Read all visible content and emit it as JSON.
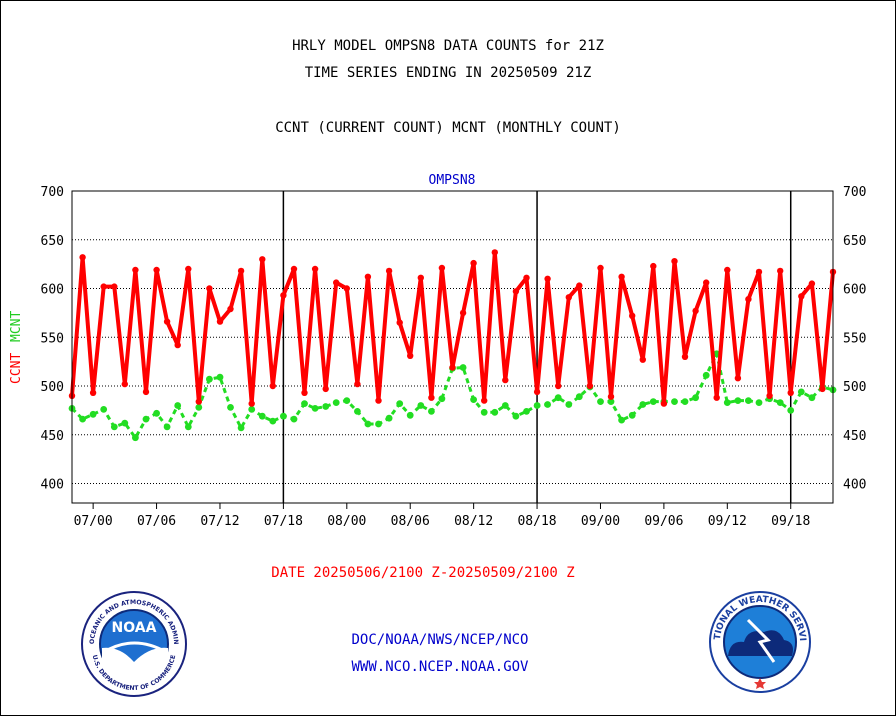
{
  "header": {
    "line1": "HRLY MODEL OMPSN8 DATA COUNTS for 21Z",
    "line2": "TIME SERIES ENDING IN 20250509 21Z",
    "line3": "CCNT (CURRENT COUNT) MCNT (MONTHLY COUNT)"
  },
  "footer": {
    "date_range": "DATE 20250506/2100 Z-20250509/2100 Z",
    "org": "DOC/NOAA/NWS/NCEP/NCO",
    "url": "WWW.NCO.NCEP.NOAA.GOV"
  },
  "logos": {
    "noaa_text": "NOAA",
    "noaa_ring": "NATIONAL OCEANIC AND ATMOSPHERIC ADMINISTRATION",
    "noaa_ring_bottom": "U.S. DEPARTMENT OF COMMERCE",
    "nws_ring": "NATIONAL WEATHER SERVICE"
  },
  "chart_data": {
    "type": "line",
    "title": "OMPSN8",
    "ylabel_left_ccnt": "CCNT",
    "ylabel_left_mcnt": "MCNT",
    "ylim": [
      380,
      700
    ],
    "yticks": [
      400,
      450,
      500,
      550,
      600,
      650,
      700
    ],
    "grid": "horizontal dotted",
    "xtick_labels": [
      "07/00",
      "07/06",
      "07/12",
      "07/18",
      "08/00",
      "08/06",
      "08/12",
      "08/18",
      "09/00",
      "09/06",
      "09/12",
      "09/18"
    ],
    "day_boundaries": [
      "07/18",
      "08/18",
      "09/18"
    ],
    "colors": {
      "ccnt": "#ff0000",
      "mcnt": "#22dd22",
      "title": "#0000cc"
    },
    "series": [
      {
        "name": "CCNT",
        "values": [
          490,
          632,
          493,
          602,
          602,
          502,
          619,
          494,
          619,
          566,
          542,
          620,
          484,
          600,
          566,
          579,
          618,
          482,
          630,
          500,
          593,
          620,
          493,
          620,
          497,
          606,
          600,
          502,
          612,
          485,
          618,
          565,
          531,
          611,
          488,
          621,
          519,
          575,
          626,
          485,
          637,
          506,
          597,
          611,
          494,
          610,
          500,
          591,
          603,
          500,
          621,
          489,
          612,
          572,
          527,
          623,
          482,
          628,
          530,
          577,
          606,
          488,
          619,
          508,
          589,
          617,
          490,
          618,
          493,
          592,
          605,
          497,
          617
        ],
        "color": "#ff0000"
      },
      {
        "name": "MCNT",
        "values": [
          477,
          466,
          471,
          476,
          458,
          462,
          447,
          466,
          472,
          458,
          480,
          458,
          478,
          507,
          509,
          478,
          457,
          476,
          469,
          464,
          469,
          466,
          482,
          477,
          479,
          483,
          485,
          474,
          461,
          461,
          467,
          482,
          470,
          480,
          474,
          487,
          518,
          519,
          486,
          473,
          473,
          480,
          469,
          474,
          480,
          481,
          488,
          481,
          489,
          499,
          484,
          484,
          465,
          470,
          481,
          484,
          484,
          484,
          484,
          488,
          511,
          533,
          483,
          485,
          485,
          483,
          487,
          483,
          475,
          494,
          488,
          499,
          496
        ],
        "color": "#22dd22"
      }
    ]
  }
}
